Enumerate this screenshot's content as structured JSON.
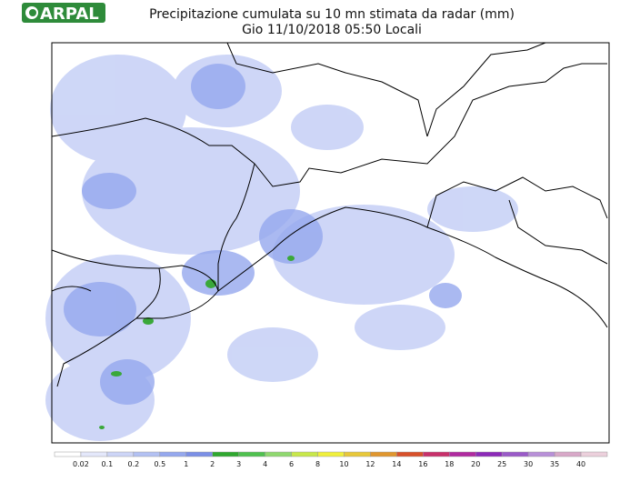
{
  "header": {
    "logo": "ARPAL",
    "title": "Precipitazione cumulata su 10 mn stimata da radar (mm)",
    "subtitle": "Gio 11/10/2018 05:50 Locali"
  },
  "legend": {
    "labels": [
      "0.02",
      "0.1",
      "0.2",
      "0.5",
      "1",
      "2",
      "3",
      "4",
      "6",
      "8",
      "10",
      "12",
      "14",
      "16",
      "18",
      "20",
      "25",
      "30",
      "35",
      "40"
    ],
    "colors": [
      "#ffffff",
      "#e4e8fb",
      "#cdd5f7",
      "#b3c1f3",
      "#95a8ee",
      "#7b8fe6",
      "#2fa82f",
      "#4fc14f",
      "#8fd86f",
      "#c8e84a",
      "#f0f03c",
      "#e8c83a",
      "#e0962e",
      "#d8502a",
      "#c8306a",
      "#b02aa0",
      "#8c2ab8",
      "#9a5ac8",
      "#b890d8",
      "#d8a8c8",
      "#ecd0dc"
    ]
  }
}
